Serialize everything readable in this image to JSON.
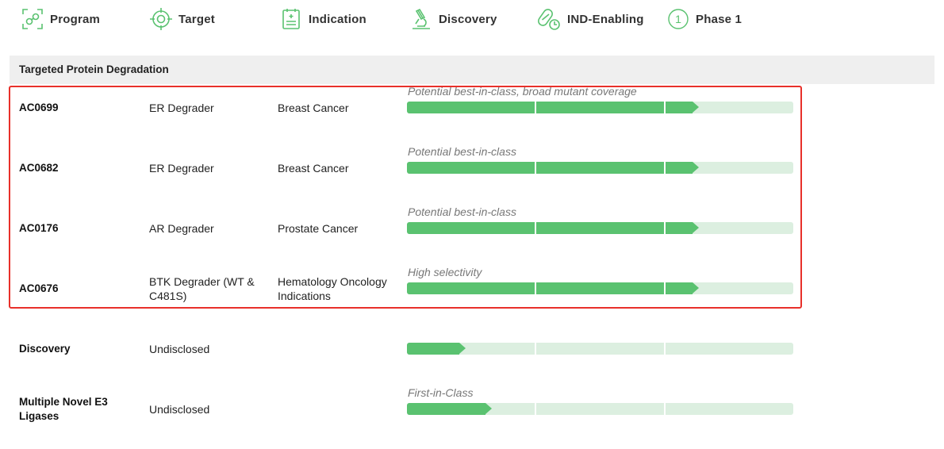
{
  "header": {
    "columns": [
      {
        "label": "Program",
        "icon": "program-icon"
      },
      {
        "label": "Target",
        "icon": "target-icon"
      },
      {
        "label": "Indication",
        "icon": "indication-icon"
      },
      {
        "label": "Discovery",
        "icon": "microscope-icon"
      },
      {
        "label": "IND-Enabling",
        "icon": "pills-icon"
      },
      {
        "label": "Phase 1",
        "icon": "number-one-icon",
        "icon_text": "1"
      }
    ]
  },
  "colors": {
    "accent": "#5ac270",
    "track": "#dcefe0",
    "highlight_border": "#e8302a"
  },
  "section": {
    "title": "Targeted Protein Degradation"
  },
  "rows": [
    {
      "program": "AC0699",
      "target": "ER Degrader",
      "indication": "Breast Cancer",
      "note": "Potential best-in-class, broad mutant coverage",
      "progress": 0.755
    },
    {
      "program": "AC0682",
      "target": "ER Degrader",
      "indication": "Breast Cancer",
      "note": "Potential best-in-class",
      "progress": 0.755
    },
    {
      "program": "AC0176",
      "target": "AR Degrader",
      "indication": "Prostate Cancer",
      "note": "Potential best-in-class",
      "progress": 0.755
    },
    {
      "program": "AC0676",
      "target": "BTK Degrader (WT & C481S)",
      "indication": "Hematology Oncology Indications",
      "note": "High selectivity",
      "progress": 0.755
    },
    {
      "program": "Discovery",
      "target": "Undisclosed",
      "indication": "",
      "note": "",
      "progress": 0.152
    },
    {
      "program": "Multiple Novel E3 Ligases",
      "target": "Undisclosed",
      "indication": "",
      "note": "First-in-Class",
      "progress": 0.22
    }
  ]
}
